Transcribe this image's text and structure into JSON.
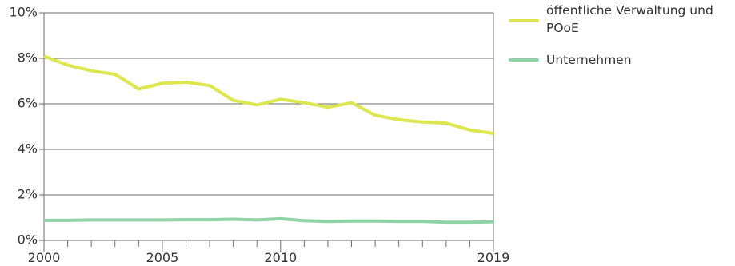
{
  "chart_data": {
    "type": "line",
    "x": [
      2000,
      2001,
      2002,
      2003,
      2004,
      2005,
      2006,
      2007,
      2008,
      2009,
      2010,
      2011,
      2012,
      2013,
      2014,
      2015,
      2016,
      2017,
      2018,
      2019
    ],
    "series": [
      {
        "name": "öffentliche Verwaltung und POoE",
        "color": "#dde64e",
        "values": [
          8.1,
          7.7,
          7.45,
          7.3,
          6.65,
          6.9,
          6.95,
          6.8,
          6.15,
          5.95,
          6.2,
          6.05,
          5.85,
          6.05,
          5.5,
          5.3,
          5.2,
          5.15,
          4.85,
          4.7
        ]
      },
      {
        "name": "Unternehmen",
        "color": "#8dd3a6",
        "values": [
          0.88,
          0.88,
          0.9,
          0.9,
          0.9,
          0.9,
          0.91,
          0.91,
          0.93,
          0.9,
          0.95,
          0.87,
          0.83,
          0.85,
          0.85,
          0.84,
          0.84,
          0.8,
          0.8,
          0.82
        ]
      }
    ],
    "ylim": [
      0,
      10
    ],
    "y_ticks": [
      0,
      2,
      4,
      6,
      8,
      10
    ],
    "y_tick_labels": [
      "0%",
      "2%",
      "4%",
      "6%",
      "8%",
      "10%"
    ],
    "x_ticks_labeled": [
      2000,
      2005,
      2010,
      2019
    ],
    "x_tick_labels": [
      "2000",
      "2005",
      "2010",
      "2019"
    ],
    "grid": "horizontal",
    "legend_position": "right"
  },
  "legend": [
    {
      "label": "öffentliche Verwaltung und POoE",
      "color": "#dde64e"
    },
    {
      "label": "Unternehmen",
      "color": "#8dd3a6"
    }
  ]
}
